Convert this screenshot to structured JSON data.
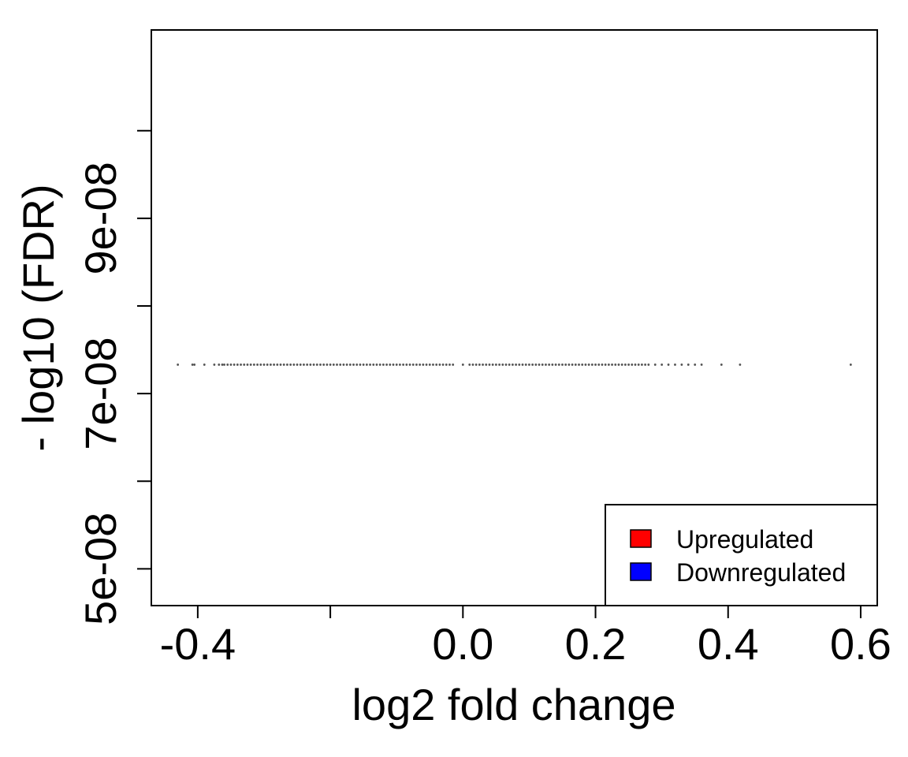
{
  "chart_data": {
    "type": "scatter",
    "title": "",
    "xlabel": "log2 fold change",
    "ylabel": "- log10 (FDR)",
    "xlim": [
      -0.47,
      0.625
    ],
    "ylim": [
      4.58e-08,
      1.115e-07
    ],
    "x_ticks": [
      -0.4,
      -0.2,
      0.0,
      0.2,
      0.4,
      0.6
    ],
    "x_tick_labels": [
      "-0.4",
      "",
      "0.0",
      "0.2",
      "0.4",
      "0.6"
    ],
    "y_ticks": [
      5e-08,
      6e-08,
      7e-08,
      8e-08,
      9e-08,
      1e-07
    ],
    "y_tick_labels": [
      "5e-08",
      "",
      "7e-08",
      "",
      "9e-08",
      ""
    ],
    "grid": false,
    "legend": {
      "position": "bottom-right",
      "entries": [
        {
          "label": "Upregulated",
          "color": "#ff0000"
        },
        {
          "label": "Downregulated",
          "color": "#0000ff"
        }
      ]
    },
    "point_color": "#555555",
    "series": [
      {
        "y_value": 7.33e-08,
        "x": [
          -0.43,
          -0.408,
          -0.405,
          -0.39,
          -0.375,
          -0.368,
          -0.363,
          -0.36,
          -0.355,
          -0.35,
          -0.345,
          -0.34,
          -0.335,
          -0.33,
          -0.325,
          -0.32,
          -0.315,
          -0.31,
          -0.305,
          -0.3,
          -0.295,
          -0.29,
          -0.285,
          -0.28,
          -0.275,
          -0.27,
          -0.265,
          -0.26,
          -0.255,
          -0.25,
          -0.245,
          -0.24,
          -0.235,
          -0.23,
          -0.225,
          -0.22,
          -0.215,
          -0.21,
          -0.205,
          -0.2,
          -0.195,
          -0.19,
          -0.185,
          -0.18,
          -0.175,
          -0.17,
          -0.165,
          -0.16,
          -0.155,
          -0.15,
          -0.145,
          -0.14,
          -0.135,
          -0.13,
          -0.125,
          -0.12,
          -0.115,
          -0.11,
          -0.105,
          -0.1,
          -0.095,
          -0.09,
          -0.085,
          -0.08,
          -0.075,
          -0.07,
          -0.065,
          -0.06,
          -0.055,
          -0.05,
          -0.045,
          -0.04,
          -0.035,
          -0.03,
          -0.025,
          -0.02,
          -0.015,
          0.0,
          0.01,
          0.015,
          0.02,
          0.025,
          0.03,
          0.035,
          0.04,
          0.045,
          0.05,
          0.055,
          0.06,
          0.065,
          0.07,
          0.075,
          0.08,
          0.085,
          0.09,
          0.095,
          0.1,
          0.105,
          0.11,
          0.115,
          0.12,
          0.125,
          0.13,
          0.135,
          0.14,
          0.145,
          0.15,
          0.155,
          0.16,
          0.165,
          0.17,
          0.175,
          0.18,
          0.185,
          0.19,
          0.195,
          0.2,
          0.205,
          0.21,
          0.215,
          0.22,
          0.225,
          0.23,
          0.235,
          0.24,
          0.245,
          0.25,
          0.255,
          0.26,
          0.265,
          0.27,
          0.275,
          0.28,
          0.29,
          0.3,
          0.31,
          0.32,
          0.33,
          0.34,
          0.35,
          0.36,
          0.39,
          0.418,
          0.585
        ]
      }
    ]
  }
}
